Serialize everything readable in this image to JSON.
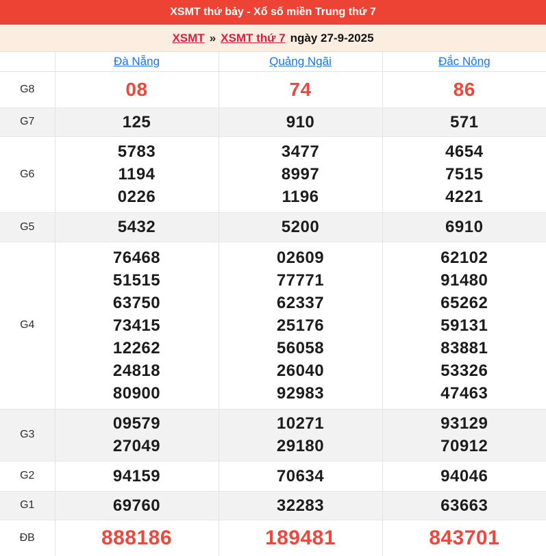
{
  "header": {
    "title": "XSMT thứ bảy - Xổ số miền Trung thứ 7"
  },
  "breadcrumb": {
    "link1": "XSMT",
    "separator": "»",
    "link2": "XSMT thứ 7",
    "date_text": "ngày 27-9-2025"
  },
  "table": {
    "columns": [
      "Đà Nẵng",
      "Quảng Ngãi",
      "Đắc Nông"
    ],
    "rows": [
      {
        "label": "G8",
        "highlight": true,
        "cells": [
          [
            "08"
          ],
          [
            "74"
          ],
          [
            "86"
          ]
        ]
      },
      {
        "label": "G7",
        "cells": [
          [
            "125"
          ],
          [
            "910"
          ],
          [
            "571"
          ]
        ]
      },
      {
        "label": "G6",
        "cells": [
          [
            "5783",
            "1194",
            "0226"
          ],
          [
            "3477",
            "8997",
            "1196"
          ],
          [
            "4654",
            "7515",
            "4221"
          ]
        ]
      },
      {
        "label": "G5",
        "cells": [
          [
            "5432"
          ],
          [
            "5200"
          ],
          [
            "6910"
          ]
        ]
      },
      {
        "label": "G4",
        "cells": [
          [
            "76468",
            "51515",
            "63750",
            "73415",
            "12262",
            "24818",
            "80900"
          ],
          [
            "02609",
            "77771",
            "62337",
            "25176",
            "56058",
            "26040",
            "92983"
          ],
          [
            "62102",
            "91480",
            "65262",
            "59131",
            "83881",
            "53326",
            "47463"
          ]
        ]
      },
      {
        "label": "G3",
        "cells": [
          [
            "09579",
            "27049"
          ],
          [
            "10271",
            "29180"
          ],
          [
            "93129",
            "70912"
          ]
        ]
      },
      {
        "label": "G2",
        "cells": [
          [
            "94159"
          ],
          [
            "70634"
          ],
          [
            "94046"
          ]
        ]
      },
      {
        "label": "G1",
        "cells": [
          [
            "69760"
          ],
          [
            "32283"
          ],
          [
            "63663"
          ]
        ]
      },
      {
        "label": "ĐB",
        "highlight": true,
        "cells": [
          [
            "888186"
          ],
          [
            "189481"
          ],
          [
            "843701"
          ]
        ]
      }
    ]
  },
  "colors": {
    "topbar_red": "#ec4335",
    "highlight_number_red": "#f0463c",
    "breadcrumb_link_red": "#d6203e",
    "breadcrumb_bg_cream": "#fbeee1",
    "column_link_blue": "#1a73e8",
    "zebra_gray": "#f2f2f2",
    "border_gray": "#e3e3e3"
  }
}
